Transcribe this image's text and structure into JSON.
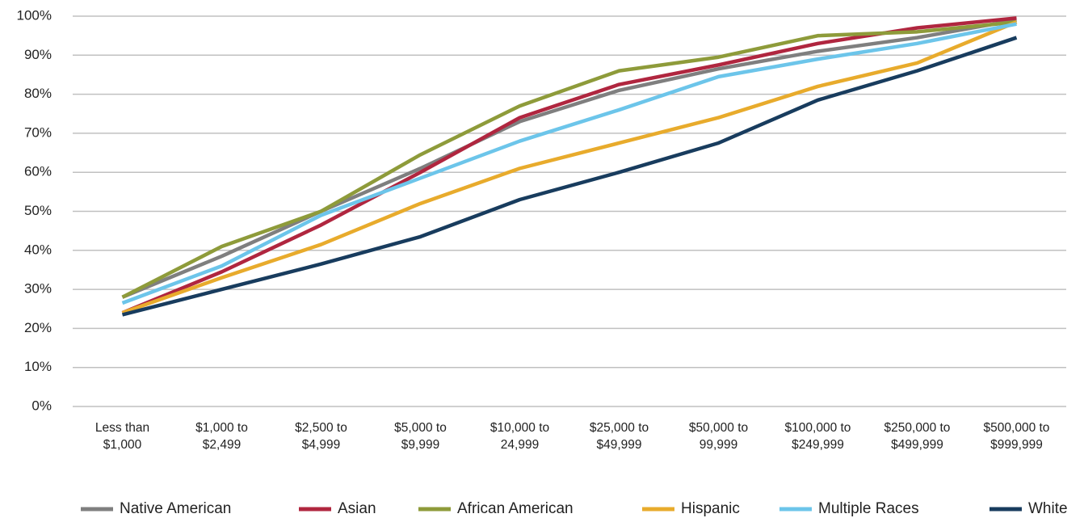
{
  "chart_data": {
    "type": "line",
    "categories": [
      "Less than $1,000",
      "$1,000 to $2,499",
      "$2,500 to $4,999",
      "$5,000 to $9,999",
      "$10,000 to 24,999",
      "$25,000 to $49,999",
      "$50,000 to 99,999",
      "$100,000 to $249,999",
      "$250,000 to $499,999",
      "$500,000 to $999,999"
    ],
    "series": [
      {
        "name": "Native American",
        "color": "#7f7f7f",
        "values": [
          28,
          38.5,
          50,
          61,
          73,
          81,
          86.5,
          91,
          94.5,
          99
        ]
      },
      {
        "name": "Asian",
        "color": "#b0263f",
        "values": [
          24,
          34.5,
          46.5,
          60,
          74,
          82.5,
          87.5,
          93,
          97,
          99.5
        ]
      },
      {
        "name": "African American",
        "color": "#8e9b3a",
        "values": [
          28,
          41,
          50,
          64.5,
          77,
          86,
          89.5,
          95,
          96,
          98.5
        ]
      },
      {
        "name": "Hispanic",
        "color": "#e8ab2c",
        "values": [
          24,
          33,
          41.5,
          52,
          61,
          67.5,
          74,
          82,
          88,
          98.5
        ]
      },
      {
        "name": "Multiple Races",
        "color": "#6cc5ea",
        "values": [
          26.5,
          36,
          49,
          58.5,
          68,
          76,
          84.5,
          89,
          93,
          98
        ]
      },
      {
        "name": "White",
        "color": "#183c5e",
        "values": [
          23.5,
          30,
          36.5,
          43.5,
          53,
          60,
          67.5,
          78.5,
          86,
          94.5
        ]
      }
    ],
    "ylim": [
      0,
      100
    ],
    "yticks": [
      {
        "value": 0,
        "label": "0%"
      },
      {
        "value": 10,
        "label": "10%"
      },
      {
        "value": 20,
        "label": "20%"
      },
      {
        "value": 30,
        "label": "30%"
      },
      {
        "value": 40,
        "label": "40%"
      },
      {
        "value": 50,
        "label": "50%"
      },
      {
        "value": 60,
        "label": "60%"
      },
      {
        "value": 70,
        "label": "70%"
      },
      {
        "value": 80,
        "label": "80%"
      },
      {
        "value": 90,
        "label": "90%"
      },
      {
        "value": 100,
        "label": "100%"
      }
    ],
    "grid": true,
    "legend": "bottom"
  }
}
